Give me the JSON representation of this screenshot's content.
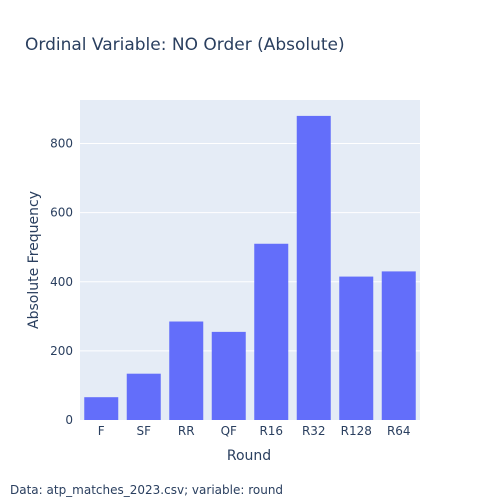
{
  "chart_data": {
    "type": "bar",
    "title": "Ordinal Variable: NO Order (Absolute)",
    "xlabel": "Round",
    "ylabel": "Absolute Frequency",
    "categories": [
      "F",
      "SF",
      "RR",
      "QF",
      "R16",
      "R32",
      "R128",
      "R64"
    ],
    "values": [
      66,
      134,
      285,
      255,
      510,
      880,
      415,
      430
    ],
    "ylim": [
      0,
      926
    ],
    "yticks": [
      0,
      200,
      400,
      600,
      800
    ],
    "grid": true,
    "legend": "none",
    "colors": {
      "bar": "#636efa",
      "plot_background": "#e5ecf6",
      "grid": "#ffffff",
      "text": "#2a3f5f"
    },
    "annotation": "Data: atp_matches_2023.csv; variable: round"
  }
}
